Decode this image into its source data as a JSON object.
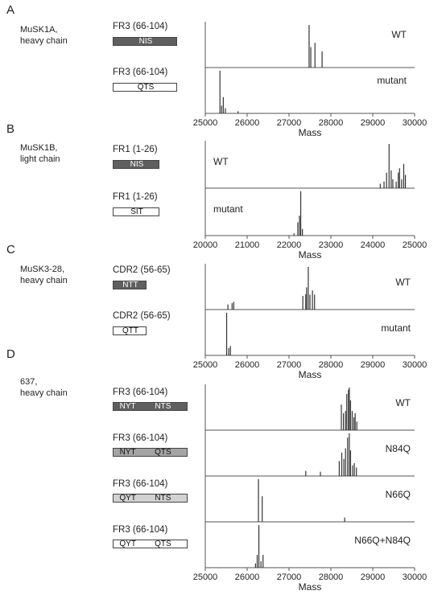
{
  "colors": {
    "dark": "#5f5f5f",
    "medium": "#a4a4a4",
    "light": "#d2d2d2",
    "white": "#ffffff",
    "trace": "#333333",
    "axis": "#555555"
  },
  "panels": [
    {
      "letter": "A",
      "sample_line1": "MuSK1A,",
      "sample_line2": "heavy chain",
      "rows": [
        {
          "region": "FR3 (66-104)",
          "fill": "dark",
          "sequons": [
            "NIS"
          ],
          "trace_label": "WT"
        },
        {
          "region": "FR3 (66-104)",
          "fill": "white",
          "sequons": [
            "QTS"
          ],
          "trace_label": "mutant"
        }
      ]
    },
    {
      "letter": "B",
      "sample_line1": "MuSK1B,",
      "sample_line2": "light chain",
      "rows": [
        {
          "region": "FR1 (1-26)",
          "fill": "dark",
          "sequons": [
            "NIS"
          ],
          "trace_label": "WT"
        },
        {
          "region": "FR1 (1-26)",
          "fill": "white",
          "sequons": [
            "SIT"
          ],
          "trace_label": "mutant"
        }
      ]
    },
    {
      "letter": "C",
      "sample_line1": "MuSK3-28,",
      "sample_line2": "heavy chain",
      "rows": [
        {
          "region": "CDR2 (56-65)",
          "fill": "dark",
          "sequons": [
            "NTT"
          ],
          "trace_label": "WT"
        },
        {
          "region": "CDR2 (56-65)",
          "fill": "white",
          "sequons": [
            "QTT"
          ],
          "trace_label": "mutant"
        }
      ]
    },
    {
      "letter": "D",
      "sample_line1": "637,",
      "sample_line2": "heavy chain",
      "rows": [
        {
          "region": "FR3 (66-104)",
          "fill": "dark",
          "sequons": [
            "NYT",
            "NTS"
          ],
          "trace_label": "WT"
        },
        {
          "region": "FR3 (66-104)",
          "fill": "medium",
          "sequons": [
            "NYT",
            "QTS"
          ],
          "trace_label": "N84Q"
        },
        {
          "region": "FR3 (66-104)",
          "fill": "light",
          "sequons": [
            "QYT",
            "NTS"
          ],
          "trace_label": "N66Q"
        },
        {
          "region": "FR3 (66-104)",
          "fill": "white",
          "sequons": [
            "QYT",
            "QTS"
          ],
          "trace_label": "N66Q+N84Q"
        }
      ]
    }
  ],
  "chart_data": [
    {
      "type": "line",
      "panel": "A",
      "xlabel": "Mass",
      "xlim": [
        25000,
        30000
      ],
      "xticks": [
        "25000",
        "26000",
        "27000",
        "28000",
        "29000",
        "30000"
      ],
      "series": [
        {
          "name": "WT",
          "peaks": [
            [
              27480,
              1.0
            ],
            [
              27520,
              0.48
            ],
            [
              27620,
              0.58
            ],
            [
              27790,
              0.38
            ]
          ]
        },
        {
          "name": "mutant",
          "peaks": [
            [
              25350,
              1.0
            ],
            [
              25390,
              0.18
            ],
            [
              25430,
              0.38
            ],
            [
              25480,
              0.12
            ],
            [
              25780,
              0.05
            ]
          ]
        }
      ]
    },
    {
      "type": "line",
      "panel": "B",
      "xlabel": "Mass",
      "xlim": [
        20000,
        25000
      ],
      "xticks": [
        "20000",
        "21000",
        "22000",
        "23000",
        "24000",
        "25000"
      ],
      "series": [
        {
          "name": "WT",
          "peaks": [
            [
              24180,
              0.1
            ],
            [
              24270,
              0.15
            ],
            [
              24330,
              0.35
            ],
            [
              24390,
              1.0
            ],
            [
              24440,
              0.4
            ],
            [
              24480,
              0.2
            ],
            [
              24560,
              0.15
            ],
            [
              24610,
              0.35
            ],
            [
              24640,
              0.45
            ],
            [
              24690,
              0.2
            ],
            [
              24740,
              0.55
            ],
            [
              24780,
              0.3
            ]
          ]
        },
        {
          "name": "mutant",
          "peaks": [
            [
              22120,
              0.05
            ],
            [
              22210,
              0.3
            ],
            [
              22250,
              0.45
            ],
            [
              22280,
              1.0
            ],
            [
              22320,
              0.15
            ]
          ]
        }
      ]
    },
    {
      "type": "line",
      "panel": "C",
      "xlabel": "Mass",
      "xlim": [
        25000,
        30000
      ],
      "xticks": [
        "25000",
        "26000",
        "27000",
        "28000",
        "29000",
        "30000"
      ],
      "series": [
        {
          "name": "WT",
          "peaks": [
            [
              25540,
              0.12
            ],
            [
              25640,
              0.15
            ],
            [
              25680,
              0.18
            ],
            [
              27330,
              0.32
            ],
            [
              27400,
              0.36
            ],
            [
              27420,
              0.52
            ],
            [
              27460,
              1.0
            ],
            [
              27500,
              0.35
            ],
            [
              27560,
              0.45
            ],
            [
              27610,
              0.35
            ]
          ]
        },
        {
          "name": "mutant",
          "peaks": [
            [
              25510,
              1.0
            ],
            [
              25560,
              0.17
            ],
            [
              25600,
              0.22
            ]
          ]
        }
      ]
    },
    {
      "type": "line",
      "panel": "D",
      "xlabel": "Mass",
      "xlim": [
        25000,
        30000
      ],
      "xticks": [
        "25000",
        "26000",
        "27000",
        "28000",
        "29000",
        "30000"
      ],
      "series": [
        {
          "name": "WT",
          "peaks": [
            [
              28250,
              0.6
            ],
            [
              28300,
              0.4
            ],
            [
              28350,
              0.45
            ],
            [
              28380,
              0.85
            ],
            [
              28420,
              0.95
            ],
            [
              28440,
              1.0
            ],
            [
              28470,
              0.7
            ],
            [
              28510,
              0.45
            ],
            [
              28550,
              0.3
            ],
            [
              28580,
              0.4
            ],
            [
              28620,
              0.2
            ]
          ]
        },
        {
          "name": "N84Q",
          "peaks": [
            [
              27400,
              0.12
            ],
            [
              27750,
              0.1
            ],
            [
              28200,
              0.35
            ],
            [
              28260,
              0.55
            ],
            [
              28310,
              0.4
            ],
            [
              28350,
              0.65
            ],
            [
              28400,
              0.9
            ],
            [
              28440,
              1.0
            ],
            [
              28470,
              0.6
            ],
            [
              28520,
              0.25
            ],
            [
              28560,
              0.3
            ],
            [
              28610,
              0.2
            ]
          ]
        },
        {
          "name": "N66Q",
          "peaks": [
            [
              26270,
              1.0
            ],
            [
              26360,
              0.6
            ],
            [
              28330,
              0.1
            ]
          ]
        },
        {
          "name": "N66Q+N84Q",
          "peaks": [
            [
              26200,
              0.1
            ],
            [
              26240,
              0.3
            ],
            [
              26280,
              1.0
            ],
            [
              26330,
              0.15
            ],
            [
              26380,
              0.3
            ]
          ]
        }
      ]
    }
  ]
}
